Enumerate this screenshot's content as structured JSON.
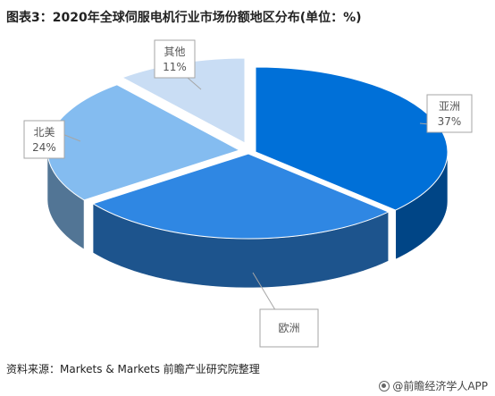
{
  "title": "图表3：2020年全球伺服电机行业市场份额地区分布(单位：%)",
  "source": "资料来源：Markets & Markets 前瞻产业研究院整理",
  "footer": "@前瞻经济学人APP",
  "chart_data": {
    "type": "pie",
    "style": "3d-exploded",
    "unit": "%",
    "slices": [
      {
        "name": "亚洲",
        "value": 37,
        "label": "37%",
        "color": "#0070D8"
      },
      {
        "name": "欧洲",
        "value": 28,
        "label": "",
        "color": "#2F87E3"
      },
      {
        "name": "北美",
        "value": 24,
        "label": "24%",
        "color": "#84BCF0"
      },
      {
        "name": "其他",
        "value": 11,
        "label": "11%",
        "color": "#C9DDF4"
      }
    ]
  }
}
